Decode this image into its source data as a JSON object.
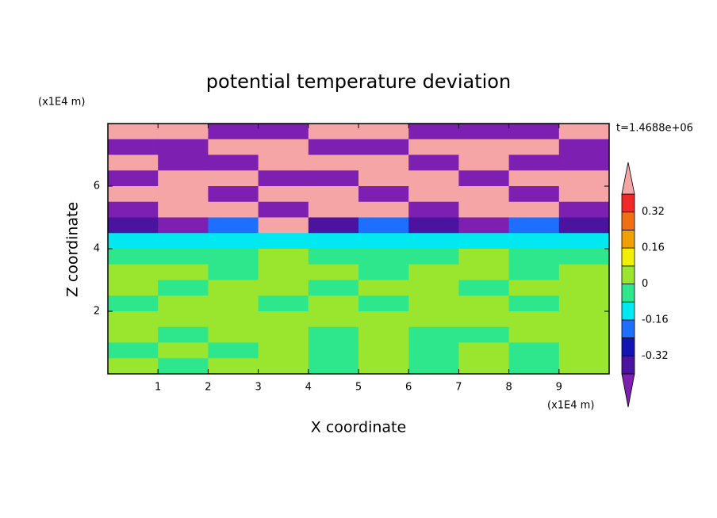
{
  "chart_data": {
    "type": "contour",
    "title": "potential temperature deviation",
    "xlabel": "X coordinate",
    "ylabel": "Z coordinate",
    "x_unit": "(x1E4 m)",
    "y_unit": "(x1E4 m)",
    "annotation": "t=1.4688e+06",
    "xlim": [
      0,
      10
    ],
    "ylim": [
      0,
      8
    ],
    "xticks": [
      1,
      2,
      3,
      4,
      5,
      6,
      7,
      8,
      9
    ],
    "yticks": [
      2,
      4,
      6
    ],
    "x": [
      0.5,
      1.5,
      2.5,
      3.5,
      4.5,
      5.5,
      6.5,
      7.5,
      8.5,
      9.5
    ],
    "y": [
      7.75,
      7.25,
      6.75,
      6.25,
      5.75,
      5.25,
      4.75,
      4.25,
      3.75,
      3.25,
      2.75,
      2.25,
      1.75,
      1.25,
      0.75,
      0.25
    ],
    "z": [
      [
        0.5,
        0.5,
        -0.5,
        -0.5,
        0.5,
        0.5,
        -0.5,
        -0.5,
        -0.5,
        0.5
      ],
      [
        -0.5,
        -0.5,
        0.5,
        0.5,
        -0.5,
        -0.5,
        0.5,
        0.5,
        0.5,
        -0.5
      ],
      [
        0.5,
        -0.5,
        -0.5,
        0.5,
        0.5,
        0.5,
        -0.5,
        0.5,
        -0.5,
        -0.5
      ],
      [
        -0.5,
        0.5,
        0.5,
        -0.5,
        -0.5,
        0.5,
        0.5,
        -0.5,
        0.5,
        0.5
      ],
      [
        0.5,
        0.5,
        -0.5,
        0.5,
        0.5,
        -0.5,
        0.5,
        0.5,
        -0.5,
        0.5
      ],
      [
        -0.5,
        0.5,
        0.5,
        -0.5,
        0.5,
        0.5,
        -0.5,
        0.5,
        0.5,
        -0.5
      ],
      [
        -0.36,
        -0.5,
        -0.2,
        0.5,
        -0.36,
        -0.2,
        -0.36,
        -0.5,
        -0.2,
        -0.36
      ],
      [
        -0.1,
        -0.1,
        -0.1,
        -0.1,
        -0.1,
        -0.1,
        -0.1,
        -0.1,
        -0.1,
        -0.1
      ],
      [
        -0.04,
        -0.04,
        -0.04,
        0.04,
        -0.04,
        -0.04,
        -0.04,
        0.04,
        -0.04,
        -0.04
      ],
      [
        0.04,
        0.04,
        -0.04,
        0.04,
        0.04,
        -0.04,
        0.04,
        0.04,
        -0.04,
        0.04
      ],
      [
        0.04,
        -0.04,
        0.04,
        0.04,
        -0.04,
        0.04,
        0.04,
        -0.04,
        0.04,
        0.04
      ],
      [
        -0.04,
        0.04,
        0.04,
        -0.04,
        0.04,
        -0.04,
        0.04,
        0.04,
        -0.04,
        0.04
      ],
      [
        0.04,
        0.04,
        0.04,
        0.04,
        0.04,
        0.04,
        0.04,
        0.04,
        0.04,
        0.04
      ],
      [
        0.04,
        -0.04,
        0.04,
        0.04,
        -0.04,
        0.04,
        -0.04,
        -0.04,
        0.04,
        0.04
      ],
      [
        -0.04,
        0.04,
        -0.04,
        0.04,
        -0.04,
        0.04,
        -0.04,
        0.04,
        -0.04,
        0.04
      ],
      [
        0.04,
        -0.04,
        0.04,
        0.04,
        -0.04,
        0.04,
        -0.04,
        0.04,
        -0.04,
        0.04
      ]
    ],
    "levels": [
      -0.4,
      -0.32,
      -0.24,
      -0.16,
      -0.08,
      0,
      0.08,
      0.16,
      0.24,
      0.32,
      0.4
    ],
    "colors": [
      "#7d1fb0",
      "#4b14a0",
      "#1414b4",
      "#1e6eff",
      "#00e8f0",
      "#2ee68c",
      "#9ae62e",
      "#f0f000",
      "#f0a000",
      "#f06e14",
      "#f02828",
      "#f5a5a5"
    ],
    "colorbar_ticks": [
      -0.32,
      -0.16,
      0,
      0.16,
      0.32
    ]
  }
}
